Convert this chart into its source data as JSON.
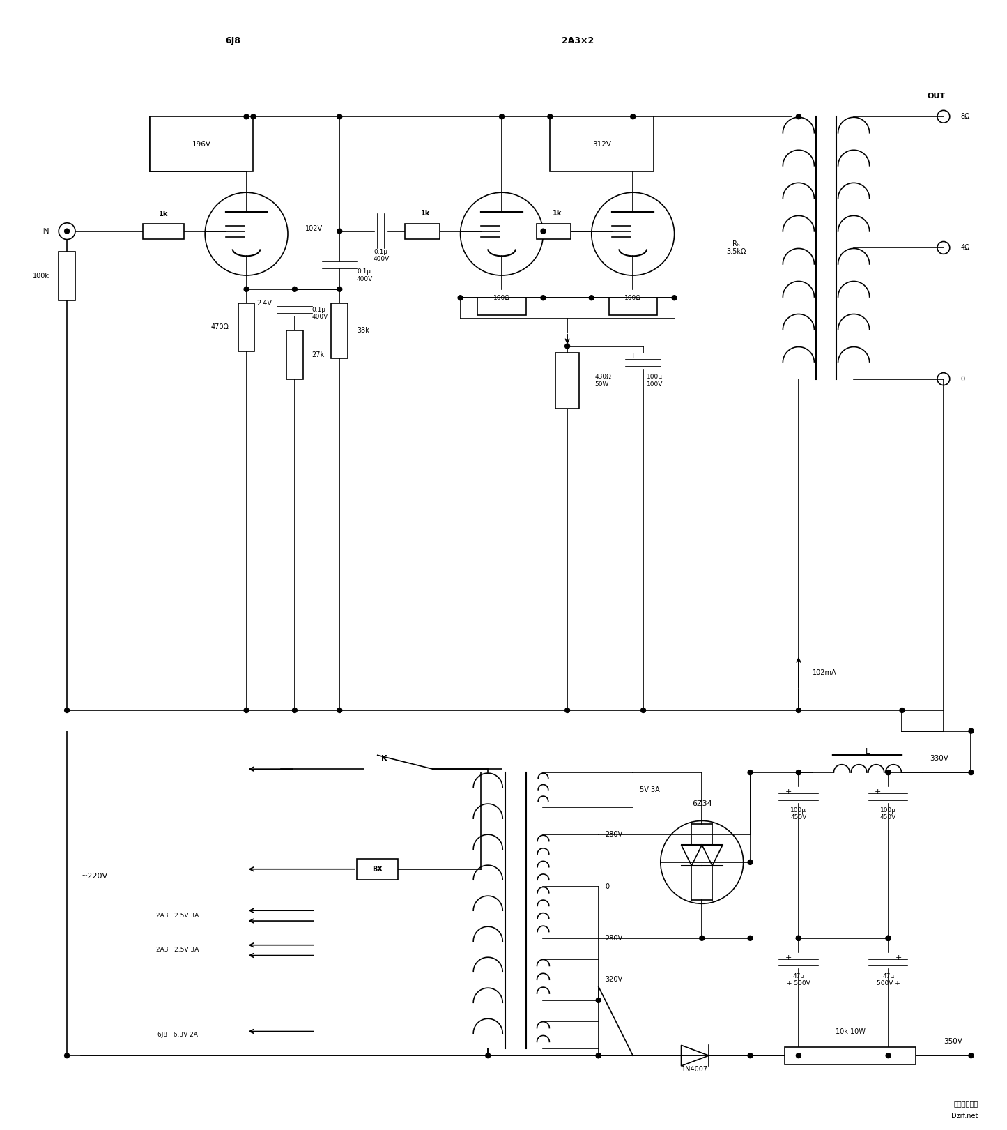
{
  "bg_color": "#ffffff",
  "line_color": "#000000",
  "figsize": [
    14.45,
    16.21
  ],
  "dpi": 100,
  "title_6j8": "6J8",
  "title_2a3": "2A3×2",
  "label_in": "IN",
  "label_out": "OUT",
  "label_K": "K",
  "label_6z34": "6Z34",
  "label_L": "L",
  "label_220v": "~220V",
  "label_bx": "BX",
  "label_196v": "196V",
  "label_312v": "312V",
  "label_102v": "102V",
  "label_2_4v": "2.4V",
  "label_1k_1": "1k",
  "label_1k_2": "1k",
  "label_1k_3": "1k",
  "label_100k": "100k",
  "label_470": "470Ω",
  "label_33k": "33k",
  "label_27k": "27k",
  "label_01mu_400v_1": "0.1μ\n400V",
  "label_01mu_400v_2": "0.1μ\n400V",
  "label_100ohm_1": "100Ω",
  "label_100ohm_2": "100Ω",
  "label_430ohm": "430Ω\n50W",
  "label_100mu_100v": "100μ\n100V",
  "label_rp": "Rₕ\n3.5kΩ",
  "label_102ma": "102mA",
  "label_8ohm": "8Ω",
  "label_4ohm": "4Ω",
  "label_0ohm": "0",
  "label_5v3a": "5V 3A",
  "label_280v_1": "280V",
  "label_280v_2": "280V",
  "label_0v": "0",
  "label_320v": "320V",
  "label_330v": "330V",
  "label_350v": "350V",
  "label_1n4007": "1N4007",
  "label_10k10w": "10k 10W",
  "label_100mu_450v_1": "100μ\n450V",
  "label_100mu_450v_2": "100μ\n450V",
  "label_47mu_500v_1": "47μ\n+ 500V",
  "label_47mu_500v_2": "47μ\n500V +",
  "label_2a3_2_5v_3a_1": "2A3   2.5V 3A",
  "label_2a3_2_5v_3a_2": "2A3   2.5V 3A",
  "label_6j8_6_3v_2a": "6J8   6.3V 2A",
  "label_dzrf": "电子开发社区",
  "label_dzrf2": "Dzrf.net"
}
